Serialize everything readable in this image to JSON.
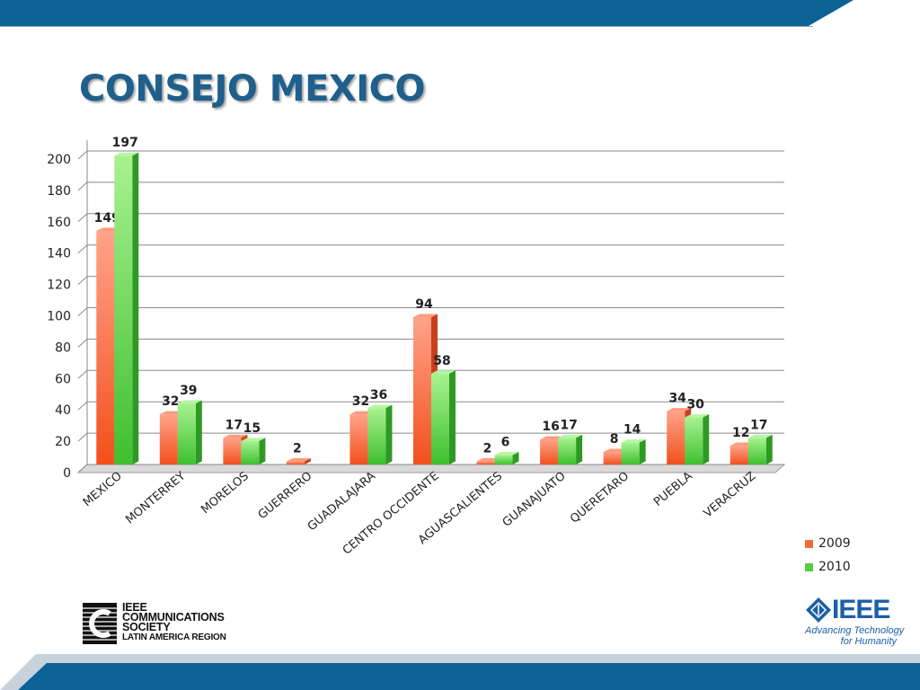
{
  "slide": {
    "title": "CONSEJO MEXICO"
  },
  "colors": {
    "title": "#1f5f8b",
    "top_bar": "#0d6295",
    "bottom_bar": "#0d6295",
    "series_2009": "#f06a3a",
    "series_2010": "#55cc44",
    "grid": "#8a8a8a"
  },
  "chart_data": {
    "type": "bar",
    "style": "3d-clustered-column",
    "categories": [
      "MEXICO",
      "MONTERREY",
      "MORELOS",
      "GUERRERO",
      "GUADALAJARA",
      "CENTRO OCCIDENTE",
      "AGUASCALIENTES",
      "GUANAJUATO",
      "QUERETARO",
      "PUEBLA",
      "VERACRUZ"
    ],
    "series": [
      {
        "name": "2009",
        "values": [
          149,
          32,
          17,
          2,
          32,
          94,
          2,
          16,
          8,
          34,
          12
        ]
      },
      {
        "name": "2010",
        "values": [
          197,
          39,
          15,
          null,
          36,
          58,
          6,
          17,
          14,
          30,
          17
        ]
      }
    ],
    "data_labels": true,
    "yticks": [
      0,
      20,
      40,
      60,
      80,
      100,
      120,
      140,
      160,
      180,
      200
    ],
    "ylim": [
      0,
      200
    ],
    "grid": true,
    "legend": "right",
    "xlabel": "",
    "ylabel": ""
  },
  "logos": {
    "comsoc": {
      "lines": [
        "IEEE",
        "COMMUNICATIONS",
        "SOCIETY",
        "LATIN AMERICA REGION"
      ],
      "icon": "comsoc-c-mark-icon"
    },
    "ieee": {
      "wordmark": "IEEE",
      "tagline": [
        "Advancing Technology",
        "for Humanity"
      ],
      "icon": "ieee-diamond-icon"
    }
  }
}
